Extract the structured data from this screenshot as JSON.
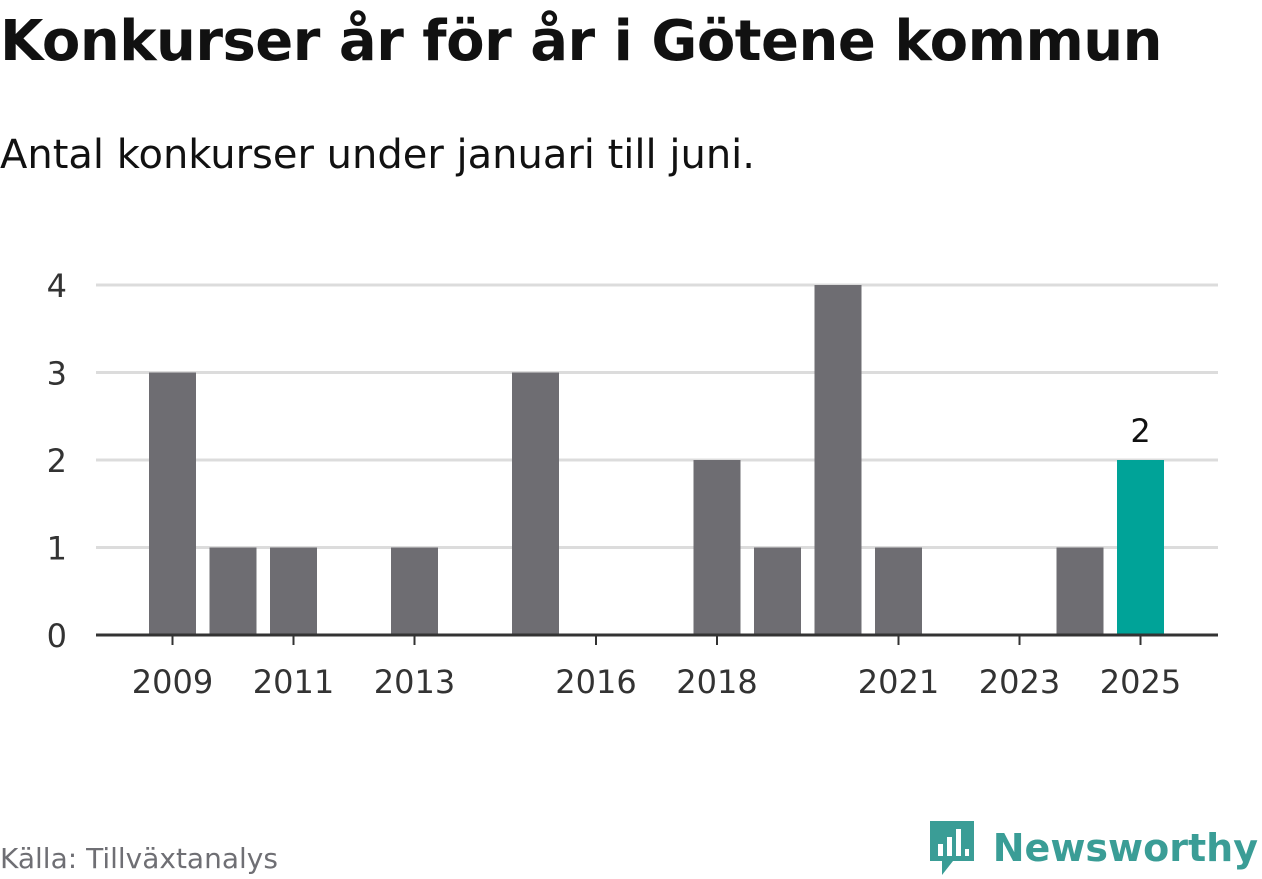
{
  "header": {
    "title": "Konkurser år för år i Götene kommun",
    "subtitle": "Antal konkurser under januari till juni."
  },
  "footer": {
    "source": "Källa: Tillväxtanalys",
    "brand": "Newsworthy",
    "brand_logo_icon": "newsworthy-logo-icon"
  },
  "colors": {
    "bar": "#6e6d72",
    "highlight": "#00a398",
    "grid": "#dcdcdc",
    "axis": "#333333",
    "brand": "#3a9d96",
    "text": "#111111",
    "tick_text": "#333333"
  },
  "chart_data": {
    "type": "bar",
    "categories": [
      "2009",
      "2010",
      "2011",
      "2012",
      "2013",
      "2014",
      "2015",
      "2016",
      "2017",
      "2018",
      "2019",
      "2020",
      "2021",
      "2022",
      "2023",
      "2024",
      "2025"
    ],
    "values": [
      3,
      1,
      1,
      0,
      1,
      0,
      3,
      0,
      0,
      2,
      1,
      4,
      1,
      0,
      0,
      1,
      2
    ],
    "x_tick_labels": [
      "2009",
      "2011",
      "2013",
      "2016",
      "2018",
      "2021",
      "2023",
      "2025"
    ],
    "y_ticks": [
      0,
      1,
      2,
      3,
      4
    ],
    "ylim": [
      0,
      4
    ],
    "highlight_category": "2025",
    "data_labels": [
      {
        "category": "2025",
        "text": "2"
      }
    ],
    "title": "Konkurser år för år i Götene kommun",
    "subtitle": "Antal konkurser under januari till juni.",
    "xlabel": "",
    "ylabel": "",
    "grid": true,
    "legend": "none"
  }
}
